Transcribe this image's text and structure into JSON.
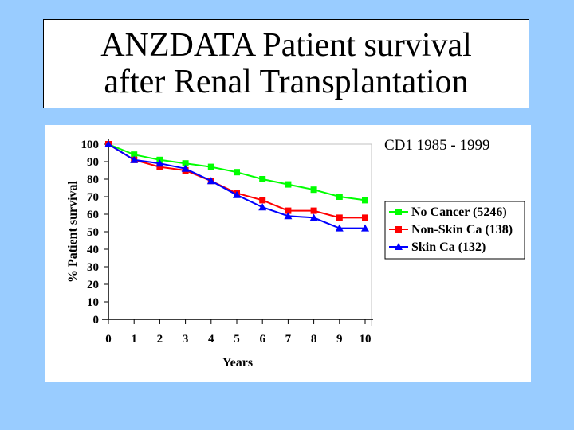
{
  "slide": {
    "title_line1": "ANZDATA Patient survival",
    "title_line2": "after Renal Transplantation",
    "background_color": "#99ccff"
  },
  "chart_data": {
    "type": "line",
    "subtitle": "CD1 1985 - 1999",
    "xlabel": "Years",
    "ylabel": "% Patient survival",
    "x": [
      0,
      1,
      2,
      3,
      4,
      5,
      6,
      7,
      8,
      9,
      10
    ],
    "xlim": [
      0,
      10
    ],
    "ylim": [
      0,
      100
    ],
    "yticks": [
      0,
      10,
      20,
      30,
      40,
      50,
      60,
      70,
      80,
      90,
      100
    ],
    "xticks": [
      0,
      1,
      2,
      3,
      4,
      5,
      6,
      7,
      8,
      9,
      10
    ],
    "legend_position": "right",
    "series": [
      {
        "name": "No Cancer (5246)",
        "color": "#00ff00",
        "marker": "square",
        "values": [
          100,
          94,
          91,
          89,
          87,
          84,
          80,
          77,
          74,
          70,
          68
        ]
      },
      {
        "name": "Non-Skin Ca (138)",
        "color": "#ff0000",
        "marker": "square",
        "values": [
          100,
          91,
          87,
          85,
          79,
          72,
          68,
          62,
          62,
          58,
          58
        ]
      },
      {
        "name": "Skin Ca (132)",
        "color": "#0000ff",
        "marker": "triangle",
        "values": [
          100,
          91,
          89,
          86,
          79,
          71,
          64,
          59,
          58,
          52,
          52
        ]
      }
    ]
  }
}
